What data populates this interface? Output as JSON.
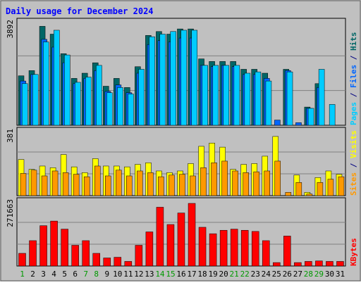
{
  "colors": {
    "background": "#c0c0c0",
    "plot_bg": "#c0c0c0",
    "title": "#0000ff",
    "hits": "#006666",
    "files": "#0066ff",
    "pages": "#00ccff",
    "visits": "#ffff00",
    "sites": "#ff9900",
    "kbytes": "#ff0000",
    "weekend_label": "#009900",
    "weekday_label": "#000000"
  },
  "chart_data": {
    "type": "bar",
    "title": "Daily usage for December 2024",
    "categories": [
      "1",
      "2",
      "3",
      "4",
      "5",
      "6",
      "7",
      "8",
      "9",
      "10",
      "11",
      "12",
      "13",
      "14",
      "15",
      "16",
      "17",
      "18",
      "19",
      "20",
      "21",
      "22",
      "23",
      "24",
      "25",
      "26",
      "27",
      "28",
      "29",
      "30",
      "31"
    ],
    "weekend_days": [
      "1",
      "7",
      "8",
      "14",
      "15",
      "21",
      "22",
      "28",
      "29"
    ],
    "panels": [
      {
        "id": "hits_files_pages",
        "ymax_label": "3892",
        "ymax": 3892,
        "legend": [
          {
            "name": "Pages",
            "color": "#00ccff"
          },
          {
            "name": "/",
            "color": "#000080"
          },
          {
            "name": "Files",
            "color": "#0066ff"
          },
          {
            "name": "/",
            "color": "#000080"
          },
          {
            "name": "Hits",
            "color": "#006666"
          }
        ],
        "series": [
          {
            "name": "Hits",
            "values": [
              1900,
              2100,
              3800,
              3500,
              2750,
              1800,
              2000,
              2400,
              1500,
              1800,
              1450,
              2250,
              3450,
              3600,
              3500,
              3700,
              3700,
              2550,
              2450,
              2450,
              2450,
              2150,
              2150,
              2000,
              0,
              2150,
              0,
              700,
              1600,
              0,
              0
            ]
          },
          {
            "name": "Files",
            "values": [
              1700,
              1950,
              3300,
              3000,
              2400,
              1600,
              1800,
              2100,
              1300,
              1550,
              1250,
              2000,
              3100,
              3250,
              3200,
              3350,
              3350,
              2300,
              2250,
              2300,
              2250,
              1950,
              1950,
              1800,
              200,
              2100,
              100,
              650,
              1450,
              0,
              0
            ]
          },
          {
            "name": "Pages",
            "values": [
              1600,
              1950,
              3200,
              3650,
              2700,
              1650,
              1850,
              2300,
              1250,
              1450,
              1200,
              2150,
              3400,
              3500,
              3600,
              3650,
              3650,
              2300,
              2300,
              2300,
              2300,
              2000,
              2050,
              1700,
              0,
              2050,
              0,
              650,
              2150,
              800,
              0
            ]
          }
        ]
      },
      {
        "id": "visits_sites",
        "ymax_label": "381",
        "ymax": 381,
        "legend": [
          {
            "name": "Sites",
            "color": "#ff9900"
          },
          {
            "name": "/",
            "color": "#000080"
          },
          {
            "name": "Visits",
            "color": "#ffff00"
          }
        ],
        "series": [
          {
            "name": "Visits",
            "values": [
              220,
              160,
              180,
              170,
              250,
              175,
              140,
              225,
              180,
              180,
              175,
              190,
              200,
              150,
              140,
              150,
              195,
              300,
              320,
              295,
              160,
              190,
              195,
              240,
              360,
              0,
              125,
              20,
              110,
              150,
              130
            ]
          },
          {
            "name": "Sites",
            "values": [
              135,
              155,
              120,
              150,
              140,
              130,
              115,
              180,
              120,
              155,
              120,
              150,
              140,
              115,
              125,
              130,
              120,
              170,
              200,
              210,
              150,
              140,
              145,
              150,
              210,
              20,
              80,
              10,
              80,
              100,
              115
            ]
          }
        ]
      },
      {
        "id": "kbytes",
        "ymax_label": "271663",
        "ymax": 271663,
        "legend": [
          {
            "name": "KBytes",
            "color": "#ff0000"
          }
        ],
        "series": [
          {
            "name": "KBytes",
            "values": [
              55000,
              110000,
              175000,
              195000,
              160000,
              90000,
              110000,
              55000,
              35000,
              38000,
              20000,
              90000,
              148000,
              255000,
              180000,
              230000,
              271663,
              168000,
              140000,
              155000,
              160000,
              155000,
              150000,
              110000,
              15000,
              130000,
              15000,
              20000,
              22000,
              20000,
              20000
            ]
          }
        ]
      }
    ]
  }
}
